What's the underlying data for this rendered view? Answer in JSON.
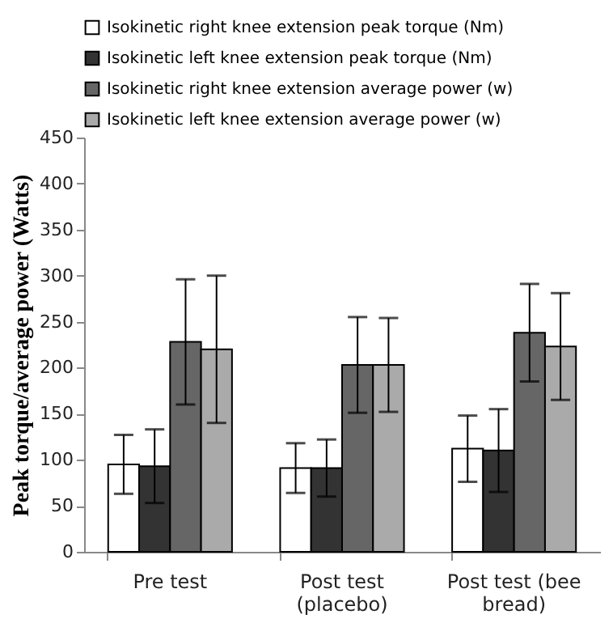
{
  "chart_data": {
    "type": "bar",
    "ylabel": "Peak torque/average power (Watts)",
    "categories": [
      "Pre test",
      "Post test (placebo)",
      "Post test (bee bread)"
    ],
    "series": [
      {
        "name": "Isokinetic right knee extension peak torque (Nm)",
        "color": "#ffffff",
        "values": [
          95,
          91,
          112
        ],
        "errors": [
          32,
          27,
          36
        ]
      },
      {
        "name": "Isokinetic left knee extension peak torque (Nm)",
        "color": "#333333",
        "values": [
          93,
          91,
          110
        ],
        "errors": [
          40,
          31,
          45
        ]
      },
      {
        "name": "Isokinetic right knee extension  average power (w)",
        "color": "#666666",
        "values": [
          228,
          203,
          238
        ],
        "errors": [
          68,
          52,
          53
        ]
      },
      {
        "name": "Isokinetic left knee extension average power (w)",
        "color": "#aaaaaa",
        "values": [
          220,
          203,
          223
        ],
        "errors": [
          80,
          51,
          58
        ]
      }
    ],
    "ylim": [
      0,
      450
    ],
    "yticks": [
      0,
      50,
      100,
      150,
      200,
      250,
      300,
      350,
      400,
      450
    ],
    "grid": false,
    "legend": "top"
  }
}
